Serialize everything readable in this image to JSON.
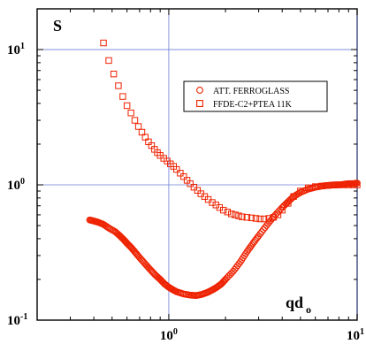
{
  "chart_data": {
    "type": "scatter",
    "title": "",
    "ylabel": "S",
    "xlabel_main": "qd",
    "xlabel_sub": "o",
    "xscale": "log",
    "yscale": "log",
    "xlim": [
      0.2,
      10
    ],
    "ylim": [
      0.1,
      20
    ],
    "grid": "lines at decades",
    "legend_placement": "top-right",
    "x_ticks": [
      {
        "value": 1,
        "base": "10",
        "exp": "0"
      },
      {
        "value": 10,
        "base": "10",
        "exp": "1"
      }
    ],
    "y_ticks": [
      {
        "value": 0.1,
        "base": "10",
        "exp": "-1"
      },
      {
        "value": 1,
        "base": "10",
        "exp": "0"
      },
      {
        "value": 10,
        "base": "10",
        "exp": "1"
      }
    ],
    "series": [
      {
        "name": "ATT. FERROGLASS",
        "marker": "circle",
        "color": "#ee2200",
        "x": [
          0.38,
          0.4,
          0.42,
          0.45,
          0.48,
          0.52,
          0.55,
          0.58,
          0.6,
          0.63,
          0.66,
          0.7,
          0.75,
          0.8,
          0.85,
          0.9,
          0.95,
          1.0,
          1.05,
          1.1,
          1.2,
          1.3,
          1.4,
          1.5,
          1.6,
          1.7,
          1.8,
          1.9,
          2.0,
          2.2,
          2.4,
          2.6,
          2.8,
          3.0,
          3.3,
          3.6,
          4.0,
          4.3,
          4.6,
          5.0,
          5.5,
          6.0,
          6.5,
          7.0,
          7.5,
          8.0,
          8.5,
          9.0,
          9.5,
          10.0
        ],
        "y": [
          0.55,
          0.54,
          0.53,
          0.51,
          0.48,
          0.45,
          0.42,
          0.39,
          0.37,
          0.345,
          0.32,
          0.29,
          0.26,
          0.235,
          0.215,
          0.2,
          0.185,
          0.175,
          0.168,
          0.162,
          0.156,
          0.153,
          0.152,
          0.155,
          0.16,
          0.167,
          0.175,
          0.185,
          0.2,
          0.23,
          0.27,
          0.32,
          0.37,
          0.42,
          0.5,
          0.58,
          0.68,
          0.75,
          0.82,
          0.88,
          0.93,
          0.96,
          0.98,
          0.99,
          1.0,
          1.0,
          1.01,
          1.02,
          1.02,
          1.03
        ]
      },
      {
        "name": "FFDE-C2+PTEA 11K",
        "marker": "square",
        "color": "#ee2200",
        "x": [
          0.45,
          0.48,
          0.51,
          0.54,
          0.57,
          0.6,
          0.63,
          0.66,
          0.69,
          0.72,
          0.75,
          0.78,
          0.81,
          0.84,
          0.87,
          0.9,
          0.94,
          0.98,
          1.02,
          1.06,
          1.1,
          1.15,
          1.2,
          1.25,
          1.3,
          1.36,
          1.42,
          1.48,
          1.55,
          1.62,
          1.7,
          1.78,
          1.86,
          1.95,
          2.05,
          2.15,
          2.25,
          2.35,
          2.45,
          2.6,
          2.75,
          2.9,
          3.05,
          3.2,
          3.4,
          3.6,
          3.8,
          4.0,
          4.3,
          4.6,
          5.0,
          5.5,
          6.0,
          6.5,
          7.0,
          7.5,
          8.0,
          8.5,
          9.0,
          9.5,
          10.0
        ],
        "y": [
          11.2,
          8.3,
          6.6,
          5.4,
          4.5,
          3.85,
          3.4,
          3.0,
          2.7,
          2.45,
          2.25,
          2.08,
          1.95,
          1.83,
          1.73,
          1.65,
          1.57,
          1.5,
          1.43,
          1.37,
          1.3,
          1.22,
          1.15,
          1.08,
          1.02,
          0.96,
          0.91,
          0.86,
          0.82,
          0.78,
          0.74,
          0.71,
          0.68,
          0.65,
          0.63,
          0.61,
          0.6,
          0.59,
          0.58,
          0.575,
          0.57,
          0.565,
          0.56,
          0.56,
          0.565,
          0.575,
          0.6,
          0.65,
          0.73,
          0.82,
          0.9,
          0.95,
          0.97,
          0.98,
          0.99,
          0.995,
          1.0,
          1.0,
          1.0,
          1.0,
          1.0
        ]
      }
    ]
  }
}
